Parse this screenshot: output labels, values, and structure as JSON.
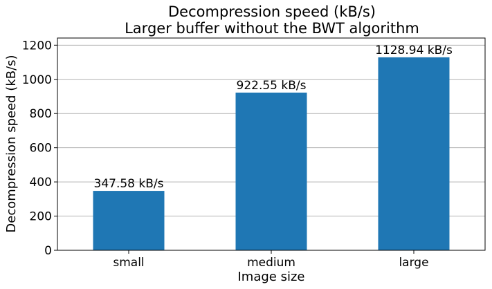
{
  "chart_data": {
    "type": "bar",
    "title": "Decompression speed (kB/s)",
    "subtitle": "Larger buffer without the BWT algorithm",
    "xlabel": "Image size",
    "ylabel": "Decompression speed (kB/s)",
    "categories": [
      "small",
      "medium",
      "large"
    ],
    "values": [
      347.58,
      922.55,
      1128.94
    ],
    "data_labels": [
      "347.58 kB/s",
      "922.55 kB/s",
      "1128.94 kB/s"
    ],
    "ylim": [
      0,
      1241.8
    ],
    "yticks": [
      0,
      200,
      400,
      600,
      800,
      1000,
      1200
    ],
    "ytick_labels": [
      "0",
      "200",
      "400",
      "600",
      "800",
      "1000",
      "1200"
    ],
    "grid": "horizontal",
    "legend": "none",
    "bar_color": "#1f77b4",
    "grid_color": "#b0b0b0"
  }
}
